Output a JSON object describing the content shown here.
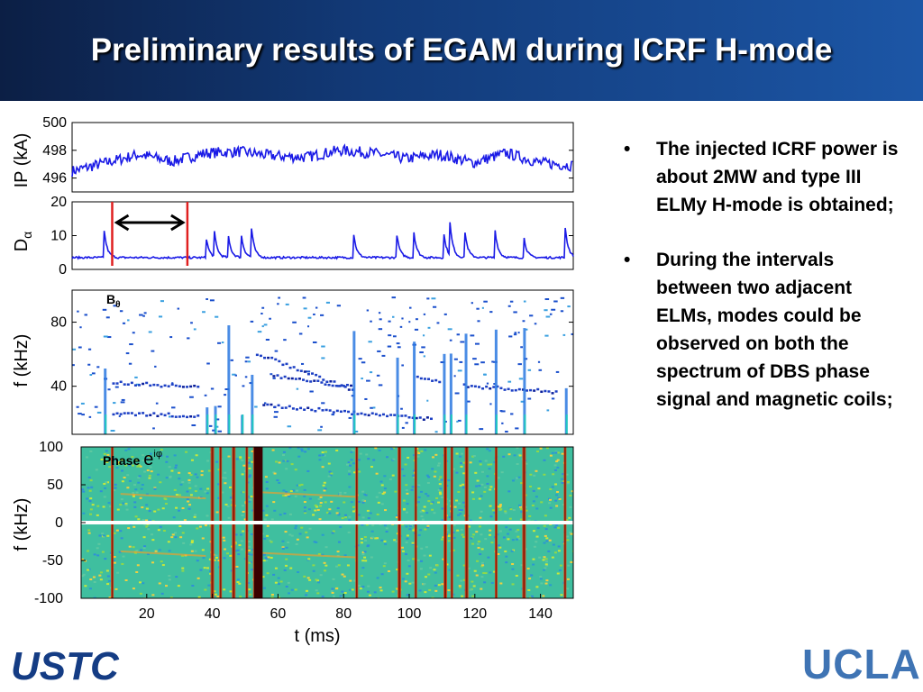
{
  "slide": {
    "title": "Preliminary results of EGAM during ICRF H-mode",
    "bullets": [
      "The injected ICRF power is about 2MW and type III ELMy H-mode is obtained;",
      "During the intervals between two adjacent ELMs, modes could be observed on both the spectrum of DBS phase signal and magnetic coils;"
    ],
    "bullet_symbol": "•",
    "logos": {
      "left": "USTC",
      "right": "UCLA"
    }
  },
  "colors": {
    "title_bar": "#123a78",
    "trace": "#1a1ae6",
    "marker": "#e02020",
    "logo_left": "#143c84",
    "logo_right": "#3f74b4"
  },
  "chart_data": [
    {
      "type": "line",
      "panel": "ip",
      "ylabel": "IP (kA)",
      "ylim": [
        495,
        500
      ],
      "yticks": [
        496,
        498,
        500
      ],
      "xlim": [
        0,
        150
      ],
      "series": [
        {
          "x": [
            0,
            10,
            20,
            30,
            40,
            50,
            60,
            70,
            80,
            90,
            100,
            110,
            120,
            130,
            140,
            150
          ],
          "values": [
            496.5,
            497.1,
            497.7,
            497.2,
            497.8,
            497.9,
            497.6,
            497.5,
            498.0,
            497.8,
            497.4,
            497.7,
            497.1,
            497.8,
            497.1,
            496.9
          ]
        }
      ]
    },
    {
      "type": "line",
      "panel": "d-alpha",
      "ylabel": "D",
      "ylabel_sub": "α",
      "ylim": [
        0,
        20
      ],
      "yticks": [
        0,
        10,
        20
      ],
      "xlim": [
        0,
        150
      ],
      "baseline": 3.5,
      "elm_times": [
        9.5,
        40,
        42.5,
        46.5,
        50.5,
        53.5,
        84,
        97,
        102,
        111,
        113,
        117.5,
        126.5,
        135,
        147.5
      ],
      "elm_heights": [
        9,
        7,
        8,
        8.5,
        8,
        10.5,
        9.5,
        8.5,
        10.5,
        9.5,
        10.5,
        8.5,
        9,
        8,
        10
      ],
      "markers": {
        "interval": [
          12,
          34.5
        ]
      }
    },
    {
      "type": "heatmap",
      "panel": "b-theta-spectrum",
      "annotation": "B",
      "annotation_sub": "θ",
      "ylabel": "f (kHz)",
      "ylim": [
        10,
        100
      ],
      "yticks": [
        40,
        80
      ],
      "xlim": [
        0,
        150
      ]
    },
    {
      "type": "heatmap",
      "panel": "phase-spectrum",
      "annotation": "Phase",
      "annotation_expr": "e",
      "annotation_exp": "iφ",
      "ylabel": "f (kHz)",
      "xlabel": "t (ms)",
      "ylim": [
        -100,
        100
      ],
      "yticks": [
        -100,
        -50,
        0,
        50,
        100
      ],
      "xticks": [
        20,
        40,
        60,
        80,
        100,
        120,
        140
      ],
      "xlim": [
        0,
        150
      ]
    }
  ]
}
